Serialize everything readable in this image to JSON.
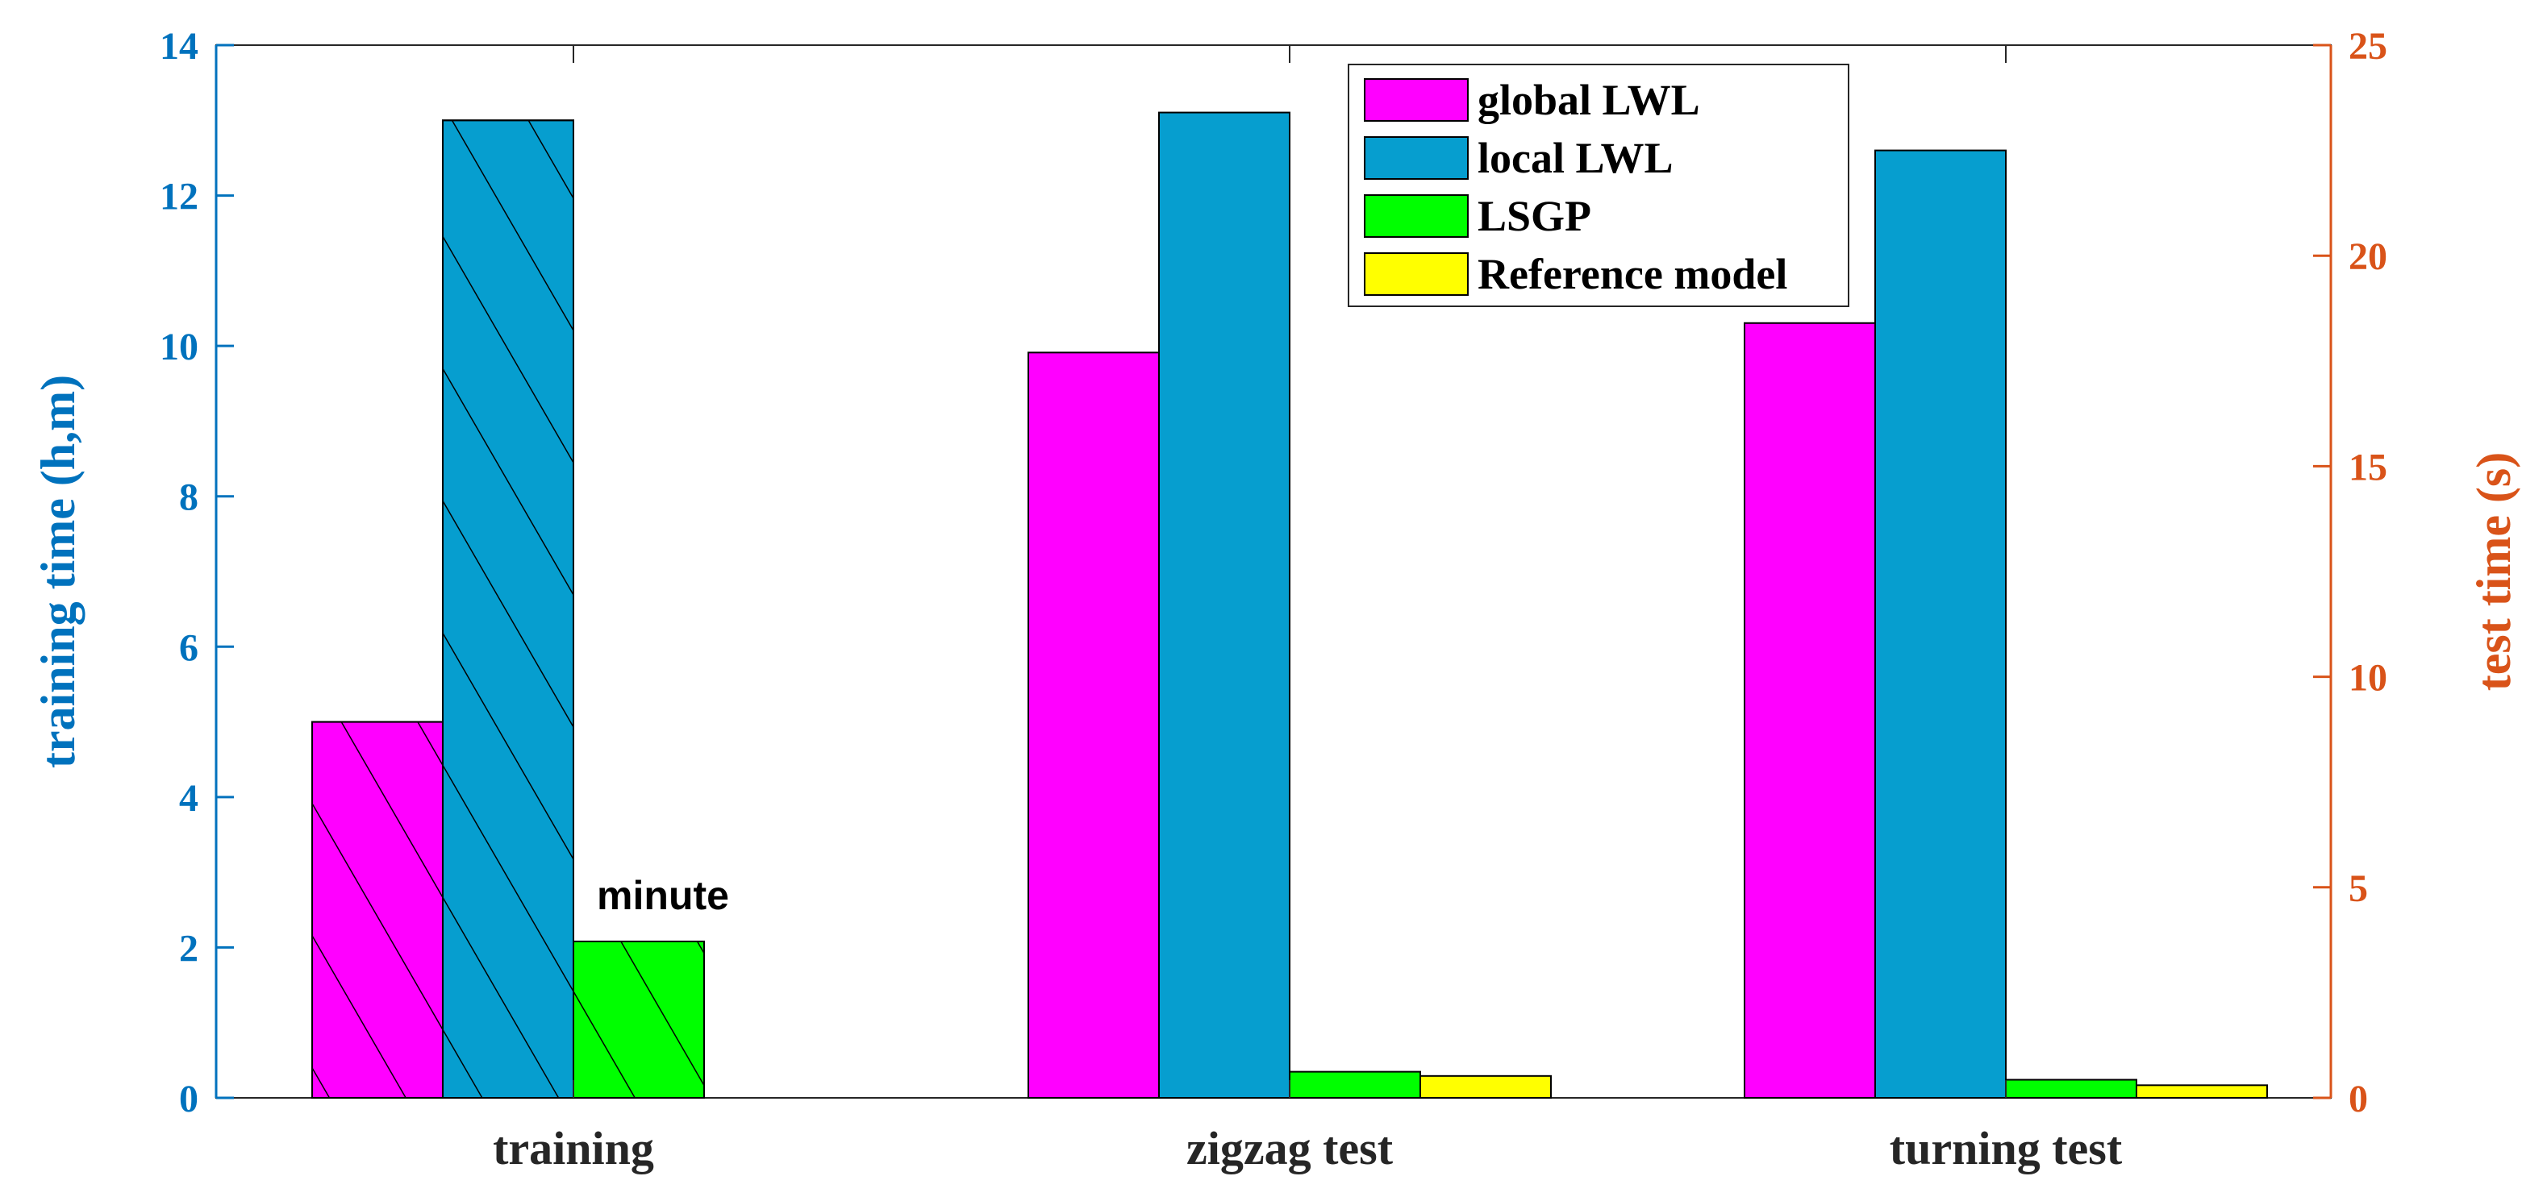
{
  "chart_data": {
    "type": "bar",
    "categories": [
      "training",
      "zigzag test",
      "turning test"
    ],
    "left_axis": {
      "label": "training time (h,m)",
      "ylim": [
        0,
        14
      ],
      "ticks": [
        0,
        2,
        4,
        6,
        8,
        10,
        12,
        14
      ],
      "color": "#0072BD"
    },
    "right_axis": {
      "label": "test time (s)",
      "ylim": [
        0,
        25
      ],
      "ticks": [
        0,
        5,
        10,
        15,
        20,
        25
      ],
      "color": "#D95319"
    },
    "series": [
      {
        "name": "global LWL",
        "color": "#FF00FF",
        "values": [
          5.0,
          17.7,
          18.4
        ],
        "axes": [
          "left",
          "right",
          "right"
        ]
      },
      {
        "name": "local LWL",
        "color": "#069ECF",
        "values": [
          13.0,
          23.4,
          22.5
        ],
        "axes": [
          "left",
          "right",
          "right"
        ]
      },
      {
        "name": "LSGP",
        "color": "#00FF00",
        "values": [
          2.08,
          0.62,
          0.43
        ],
        "axes": [
          "left",
          "right",
          "right"
        ]
      },
      {
        "name": "Reference model",
        "color": "#FFFF00",
        "values": [
          null,
          0.52,
          0.3
        ],
        "axes": [
          "left",
          "right",
          "right"
        ]
      }
    ],
    "hatched_category": "training",
    "annotations": [
      {
        "text": "minute",
        "category": "training",
        "series": "LSGP"
      }
    ],
    "legend_position": "top-right",
    "grid": false
  }
}
